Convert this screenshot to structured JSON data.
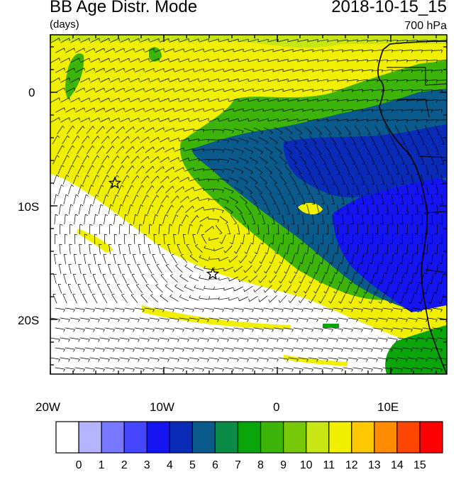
{
  "header": {
    "title": "BB Age Distr. Mode",
    "units": "(days)",
    "datetime": "2018-10-15_15",
    "level": "700 hPa"
  },
  "axes": {
    "x_ticks": [
      "20W",
      "10W",
      "0",
      "10E"
    ],
    "y_ticks": [
      "0",
      "10S",
      "20S"
    ]
  },
  "colorbar": {
    "labels": [
      "0",
      "1",
      "2",
      "3",
      "4",
      "5",
      "6",
      "7",
      "8",
      "9",
      "10",
      "11",
      "12",
      "13",
      "14",
      "15"
    ],
    "colors": [
      "#ffffff",
      "#b4b4ff",
      "#7878ff",
      "#4646ff",
      "#1414f0",
      "#0a2ab8",
      "#0a5a8c",
      "#0a8c46",
      "#0aa50a",
      "#3cb40a",
      "#78c80a",
      "#c8e614",
      "#f0f000",
      "#ffc800",
      "#ff8c00",
      "#ff4600",
      "#ff0000"
    ]
  },
  "map": {
    "region_colors": {
      "clean": "#ffffff",
      "yellow": "#f0f000",
      "yellow_green": "#c8e614",
      "green": "#3cb40a",
      "green_dark": "#0aa50a",
      "teal": "#0a5a8c",
      "blue": "#1414f0",
      "navy": "#0a2ab8"
    },
    "markers": [
      "star",
      "star"
    ]
  }
}
